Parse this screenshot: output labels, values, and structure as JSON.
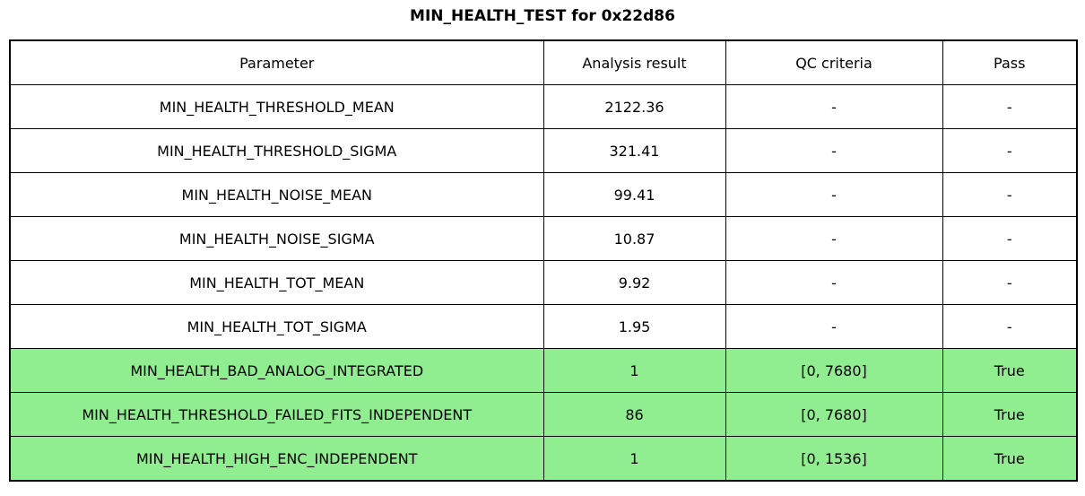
{
  "title": "MIN_HEALTH_TEST for 0x22d86",
  "colors": {
    "pass_row_green": "#90EE90",
    "border": "#000000",
    "background": "#FFFFFF",
    "text": "#000000"
  },
  "chart_data": {
    "type": "table",
    "title": "MIN_HEALTH_TEST for 0x22d86",
    "columns": [
      "Parameter",
      "Analysis result",
      "QC criteria",
      "Pass"
    ],
    "rows": [
      {
        "cells": [
          "MIN_HEALTH_THRESHOLD_MEAN",
          "2122.36",
          "-",
          "-"
        ],
        "pass_highlight": false
      },
      {
        "cells": [
          "MIN_HEALTH_THRESHOLD_SIGMA",
          "321.41",
          "-",
          "-"
        ],
        "pass_highlight": false
      },
      {
        "cells": [
          "MIN_HEALTH_NOISE_MEAN",
          "99.41",
          "-",
          "-"
        ],
        "pass_highlight": false
      },
      {
        "cells": [
          "MIN_HEALTH_NOISE_SIGMA",
          "10.87",
          "-",
          "-"
        ],
        "pass_highlight": false
      },
      {
        "cells": [
          "MIN_HEALTH_TOT_MEAN",
          "9.92",
          "-",
          "-"
        ],
        "pass_highlight": false
      },
      {
        "cells": [
          "MIN_HEALTH_TOT_SIGMA",
          "1.95",
          "-",
          "-"
        ],
        "pass_highlight": false
      },
      {
        "cells": [
          "MIN_HEALTH_BAD_ANALOG_INTEGRATED",
          "1",
          "[0, 7680]",
          "True"
        ],
        "pass_highlight": true
      },
      {
        "cells": [
          "MIN_HEALTH_THRESHOLD_FAILED_FITS_INDEPENDENT",
          "86",
          "[0, 7680]",
          "True"
        ],
        "pass_highlight": true
      },
      {
        "cells": [
          "MIN_HEALTH_HIGH_ENC_INDEPENDENT",
          "1",
          "[0, 1536]",
          "True"
        ],
        "pass_highlight": true
      }
    ]
  }
}
